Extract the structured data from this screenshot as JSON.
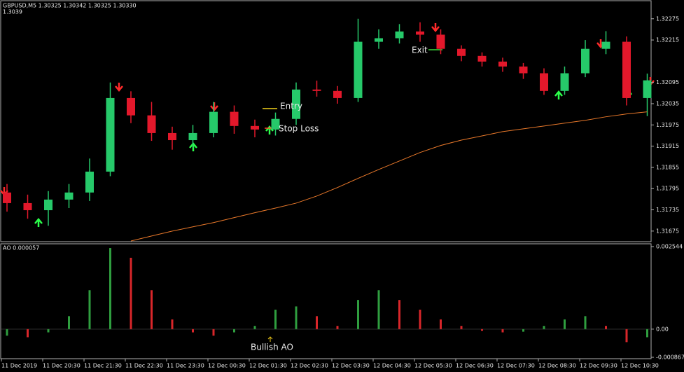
{
  "chart_data": [
    {
      "type": "candlestick",
      "title": "GBPUSD,M5  1.30325 1.30342 1.30325 1.30330",
      "subtitle": "1.3039",
      "categories": [
        "11 Dec 2019",
        null,
        "11 Dec 20:30",
        null,
        "11 Dec 21:30",
        null,
        "11 Dec 22:30",
        null,
        "11 Dec 23:30",
        null,
        "12 Dec 00:30",
        null,
        "12 Dec 01:30",
        null,
        "12 Dec 02:30",
        null,
        "12 Dec 03:30",
        null,
        "12 Dec 04:30",
        null,
        "12 Dec 05:30",
        null,
        "12 Dec 06:30",
        null,
        "12 Dec 07:30",
        null,
        "12 Dec 08:30",
        null,
        "12 Dec 09:30",
        null,
        "12 Dec 10:30",
        null
      ],
      "open": [
        1.31784,
        1.31754,
        1.31734,
        1.31764,
        1.31784,
        1.31843,
        1.32051,
        1.32002,
        1.31952,
        1.31932,
        1.31952,
        1.32012,
        1.31972,
        1.31962,
        1.31992,
        1.32075,
        1.32071,
        1.32051,
        1.3221,
        1.3222,
        1.32239,
        1.3223,
        1.3219,
        1.3217,
        1.32154,
        1.3214,
        1.32121,
        1.32071,
        1.32121,
        1.3219,
        1.3221,
        1.32051
      ],
      "high": [
        1.31808,
        1.31778,
        1.31788,
        1.31808,
        1.3188,
        1.32095,
        1.3207,
        1.3204,
        1.3197,
        1.31975,
        1.3204,
        1.3203,
        1.3199,
        1.3201,
        1.32095,
        1.321,
        1.32085,
        1.32275,
        1.32245,
        1.3226,
        1.32265,
        1.32245,
        1.322,
        1.3218,
        1.32165,
        1.3215,
        1.32135,
        1.3214,
        1.32215,
        1.3224,
        1.32225,
        1.3212
      ],
      "low": [
        1.3173,
        1.3171,
        1.3169,
        1.3174,
        1.3176,
        1.3183,
        1.3198,
        1.3193,
        1.31905,
        1.3191,
        1.3194,
        1.3195,
        1.3194,
        1.31945,
        1.31975,
        1.32055,
        1.32035,
        1.3204,
        1.3219,
        1.32205,
        1.3221,
        1.32175,
        1.32155,
        1.3214,
        1.32125,
        1.32105,
        1.3206,
        1.3206,
        1.3211,
        1.32175,
        1.3203,
        1.32
      ],
      "close": [
        1.31754,
        1.31734,
        1.31764,
        1.31784,
        1.31843,
        1.32051,
        1.32002,
        1.31952,
        1.31932,
        1.31952,
        1.32012,
        1.31972,
        1.31962,
        1.31992,
        1.32075,
        1.32071,
        1.32051,
        1.3221,
        1.3222,
        1.32239,
        1.3223,
        1.3219,
        1.3217,
        1.32154,
        1.3214,
        1.32121,
        1.32071,
        1.32121,
        1.3219,
        1.3221,
        1.32051,
        1.32101
      ],
      "up_color": "#26c96a",
      "down_color": "#e3182b",
      "line": {
        "color": "#e8782a",
        "values": [
          null,
          null,
          null,
          null,
          null,
          null,
          1.31647,
          1.31661,
          1.31675,
          1.31687,
          1.31699,
          1.31713,
          1.31727,
          1.3174,
          1.31754,
          1.31774,
          1.31798,
          1.31824,
          1.31849,
          1.31873,
          1.31897,
          1.31917,
          1.31932,
          1.31944,
          1.31956,
          1.31964,
          1.31972,
          1.3198,
          1.31988,
          1.31998,
          1.32006,
          1.32012
        ]
      },
      "ylim": [
        1.31645,
        1.32328
      ],
      "yticks": [
        1.32275,
        1.32215,
        1.32095,
        1.32035,
        1.31975,
        1.31915,
        1.31855,
        1.31795,
        1.31735,
        1.31675
      ],
      "grid": false,
      "annotations": [
        {
          "text": "Entry",
          "color": "#f2d21b"
        },
        {
          "text": "Stop Loss",
          "color": "#ff4a2a"
        },
        {
          "text": "Exit",
          "color": "#3bdc3b"
        }
      ]
    },
    {
      "type": "bar",
      "title": "AO 0.000057",
      "values": [
        -0.0002,
        -0.00025,
        -0.0001,
        0.0004,
        0.0012,
        0.0025,
        0.0022,
        0.0012,
        0.0003,
        -0.0001,
        -0.0002,
        -0.0001,
        0.0001,
        0.0006,
        0.0007,
        0.0004,
        0.0001,
        0.0009,
        0.0012,
        0.0009,
        0.0006,
        0.0003,
        0.0001,
        -5e-05,
        -0.0001,
        -8e-05,
        0.0001,
        0.0003,
        0.0004,
        0.0001,
        -0.0004,
        -0.00025
      ],
      "up_color": "#2f9e3f",
      "down_color": "#d8262a",
      "ylim": [
        -0.000867,
        0.002544
      ],
      "yticks": [
        0.002544,
        {
          "value": 0,
          "label": "0.00"
        },
        -0.000867
      ],
      "grid": false,
      "annotations": [
        {
          "text": "Bullish AO",
          "color": "#e9c418"
        }
      ]
    }
  ]
}
